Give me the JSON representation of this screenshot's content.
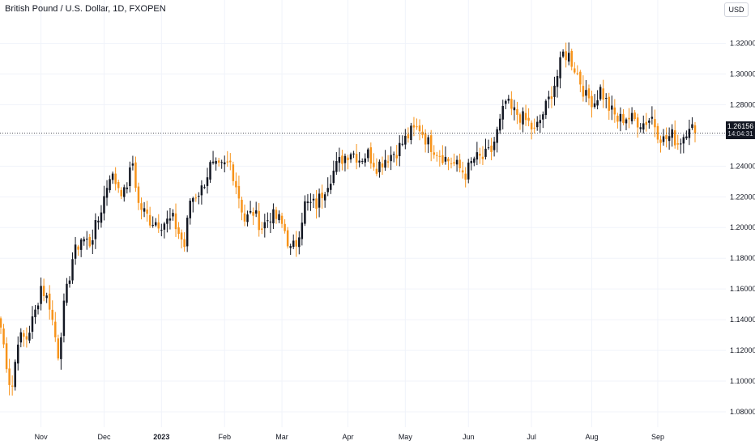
{
  "header": {
    "title": "British Pound / U.S. Dollar, 1D, FXOPEN",
    "currency": "USD"
  },
  "last_price": {
    "value": "1.26156",
    "countdown": "14:04:31"
  },
  "colors": {
    "up": "#131722",
    "down": "#f7931a",
    "grid": "#f0f3fa",
    "price_line": "#131722"
  },
  "chart_data": {
    "type": "candlestick",
    "y_axis": {
      "ylim": [
        1.07,
        1.335
      ],
      "ticks": [
        "1.08000",
        "1.10000",
        "1.12000",
        "1.14000",
        "1.16000",
        "1.18000",
        "1.20000",
        "1.22000",
        "1.24000",
        "1.26000",
        "1.28000",
        "1.30000",
        "1.32000"
      ]
    },
    "x_axis": {
      "labels": [
        {
          "text": "Nov",
          "index": 14,
          "bold": false
        },
        {
          "text": "Dec",
          "index": 36,
          "bold": false
        },
        {
          "text": "2023",
          "index": 56,
          "bold": true
        },
        {
          "text": "Feb",
          "index": 78,
          "bold": false
        },
        {
          "text": "Mar",
          "index": 98,
          "bold": false
        },
        {
          "text": "Apr",
          "index": 121,
          "bold": false
        },
        {
          "text": "May",
          "index": 141,
          "bold": false
        },
        {
          "text": "Jun",
          "index": 163,
          "bold": false
        },
        {
          "text": "Jul",
          "index": 185,
          "bold": false
        },
        {
          "text": "Aug",
          "index": 206,
          "bold": false
        },
        {
          "text": "Sep",
          "index": 229,
          "bold": false
        }
      ],
      "total_bars": 232
    },
    "grid": true,
    "last_value": 1.26156,
    "anchors": [
      [
        0,
        1.135
      ],
      [
        3,
        1.1
      ],
      [
        4,
        1.097
      ],
      [
        6,
        1.128
      ],
      [
        9,
        1.128
      ],
      [
        12,
        1.145
      ],
      [
        14,
        1.162
      ],
      [
        17,
        1.15
      ],
      [
        20,
        1.118
      ],
      [
        22,
        1.148
      ],
      [
        25,
        1.18
      ],
      [
        28,
        1.193
      ],
      [
        31,
        1.19
      ],
      [
        34,
        1.205
      ],
      [
        38,
        1.235
      ],
      [
        43,
        1.222
      ],
      [
        46,
        1.242
      ],
      [
        48,
        1.215
      ],
      [
        52,
        1.205
      ],
      [
        56,
        1.203
      ],
      [
        60,
        1.205
      ],
      [
        64,
        1.188
      ],
      [
        66,
        1.218
      ],
      [
        70,
        1.225
      ],
      [
        73,
        1.24
      ],
      [
        76,
        1.238
      ],
      [
        80,
        1.242
      ],
      [
        82,
        1.228
      ],
      [
        85,
        1.205
      ],
      [
        88,
        1.21
      ],
      [
        91,
        1.2
      ],
      [
        94,
        1.208
      ],
      [
        97,
        1.205
      ],
      [
        99,
        1.198
      ],
      [
        101,
        1.185
      ],
      [
        103,
        1.19
      ],
      [
        106,
        1.215
      ],
      [
        110,
        1.215
      ],
      [
        114,
        1.23
      ],
      [
        117,
        1.24
      ],
      [
        119,
        1.245
      ],
      [
        122,
        1.25
      ],
      [
        125,
        1.245
      ],
      [
        128,
        1.248
      ],
      [
        131,
        1.24
      ],
      [
        134,
        1.245
      ],
      [
        138,
        1.25
      ],
      [
        140,
        1.255
      ],
      [
        143,
        1.262
      ],
      [
        146,
        1.265
      ],
      [
        149,
        1.255
      ],
      [
        152,
        1.25
      ],
      [
        155,
        1.245
      ],
      [
        159,
        1.24
      ],
      [
        162,
        1.235
      ],
      [
        165,
        1.245
      ],
      [
        168,
        1.245
      ],
      [
        171,
        1.25
      ],
      [
        174,
        1.268
      ],
      [
        176,
        1.282
      ],
      [
        178,
        1.276
      ],
      [
        180,
        1.274
      ],
      [
        184,
        1.268
      ],
      [
        186,
        1.262
      ],
      [
        188,
        1.27
      ],
      [
        191,
        1.283
      ],
      [
        194,
        1.299
      ],
      [
        196,
        1.313
      ],
      [
        198,
        1.312
      ],
      [
        201,
        1.3
      ],
      [
        204,
        1.285
      ],
      [
        207,
        1.282
      ],
      [
        209,
        1.29
      ],
      [
        212,
        1.278
      ],
      [
        215,
        1.27
      ],
      [
        218,
        1.272
      ],
      [
        221,
        1.27
      ],
      [
        224,
        1.268
      ],
      [
        227,
        1.272
      ],
      [
        229,
        1.262
      ],
      [
        231,
        1.257
      ],
      [
        234,
        1.26
      ],
      [
        236,
        1.255
      ],
      [
        238,
        1.26
      ],
      [
        240,
        1.268
      ],
      [
        242,
        1.262
      ]
    ]
  }
}
